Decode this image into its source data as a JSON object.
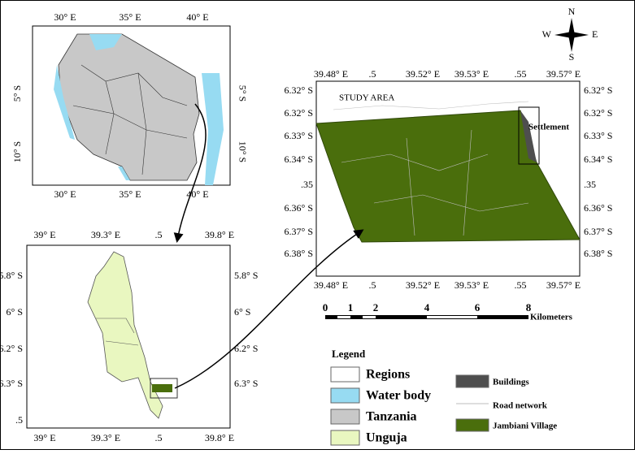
{
  "maps": [
    {
      "top_labels": [
        "30° E",
        "35° E",
        "40° E"
      ],
      "bottom_labels": [
        "30° E",
        "35° E",
        "40° E"
      ],
      "left_labels": [
        "5° S",
        "10° S"
      ],
      "right_labels": [
        "5° S",
        "10° S"
      ]
    },
    {
      "top_labels": [
        "39° E",
        "39.3° E",
        ".5",
        "39.8° E"
      ],
      "bottom_labels": [
        "39° E",
        "39.3° E",
        ".5",
        "39.8° E"
      ],
      "left_labels": [
        "5.8° S",
        "6° S",
        "6.2° S",
        "6.3° S",
        ".5"
      ],
      "right_labels": [
        "5.8° S",
        "6° S",
        "6.2° S",
        "6.3° S"
      ]
    },
    {
      "top_labels": [
        "39.48° E",
        ".5",
        "39.52° E",
        "39.53° E",
        ".55",
        "39.57° E"
      ],
      "bottom_labels": [
        "39.48° E",
        ".5",
        "39.52° E",
        "39.53° E",
        ".55",
        "39.57° E"
      ],
      "left_labels": [
        "6.32° S",
        "6.32° S",
        "6.33° S",
        "6.34° S",
        ".35",
        "6.36° S",
        "6.37° S",
        "6.38° S"
      ],
      "right_labels": [
        "6.32° S",
        "6.32° S",
        "6.33° S",
        "6.34° S",
        ".35",
        "6.36° S",
        "6.37° S",
        "6.38° S"
      ],
      "title": "STUDY AREA",
      "annotation": "Settlement"
    }
  ],
  "compass": {
    "n": "N",
    "e": "E",
    "s": "S",
    "w": "W"
  },
  "scale_bar": {
    "ticks": [
      "0",
      "1",
      "2",
      "4",
      "6",
      "8"
    ],
    "unit": "Kilometers"
  },
  "legend": {
    "title": "Legend",
    "items": [
      {
        "label": "Regions",
        "color": "#ffffff"
      },
      {
        "label": "Water body",
        "color": "#97dbf2"
      },
      {
        "label": "Tanzania",
        "color": "#c8c8c8"
      },
      {
        "label": "Unguja",
        "color": "#e9f7c0"
      },
      {
        "label": "Buildings",
        "color": "#4e4e4e"
      },
      {
        "label": "Road network",
        "color": "#bdbdbd"
      },
      {
        "label": "Jambiani Village",
        "color": "#4a6e0c"
      }
    ]
  }
}
